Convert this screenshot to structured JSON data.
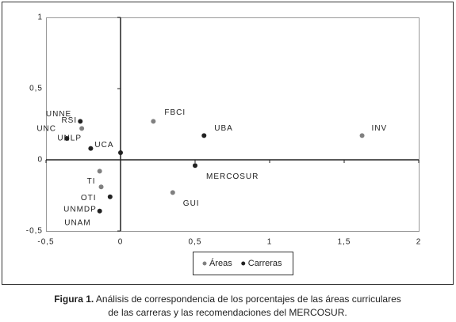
{
  "chart_data": {
    "type": "scatter",
    "xlim": [
      -0.5,
      2
    ],
    "ylim": [
      -0.5,
      1
    ],
    "xticks": [
      {
        "value": -0.5,
        "label": "-0,5"
      },
      0,
      {
        "value": 0.5,
        "label": "0,5"
      },
      1,
      {
        "value": 1.5,
        "label": "1,5"
      },
      2
    ],
    "yticks": [
      {
        "value": -0.5,
        "label": "-0,5"
      },
      0,
      {
        "value": 0.5,
        "label": "0,5"
      },
      1
    ],
    "series": [
      {
        "name": "Áreas",
        "color": "#808080",
        "x": [
          0.22,
          1.62,
          0.35,
          -0.14,
          -0.13,
          -0.26
        ],
        "values": [
          0.27,
          0.17,
          -0.23,
          -0.08,
          -0.19,
          0.22
        ],
        "labels": [
          "FBCI",
          "INV",
          "GUI",
          "TI",
          "OTI",
          "RSI"
        ]
      },
      {
        "name": "Carreras",
        "color": "#222222",
        "x": [
          -0.27,
          -0.36,
          -0.2,
          0,
          0.56,
          0.5,
          -0.07,
          -0.14
        ],
        "values": [
          0.27,
          0.15,
          0.08,
          0.05,
          0.17,
          -0.04,
          -0.26,
          -0.36
        ],
        "labels": [
          "UNNE",
          "UNLP",
          "UCA",
          "UNC",
          "UBA",
          "MERCOSUR",
          "UNMDP",
          "UNAM"
        ]
      }
    ],
    "legend": "bottom"
  },
  "caption": {
    "label": "Figura 1.",
    "lines": [
      "Análisis de correspondencia de los porcentajes de las áreas curriculares",
      "de las carreras y las recomendaciones del MERCOSUR."
    ]
  }
}
